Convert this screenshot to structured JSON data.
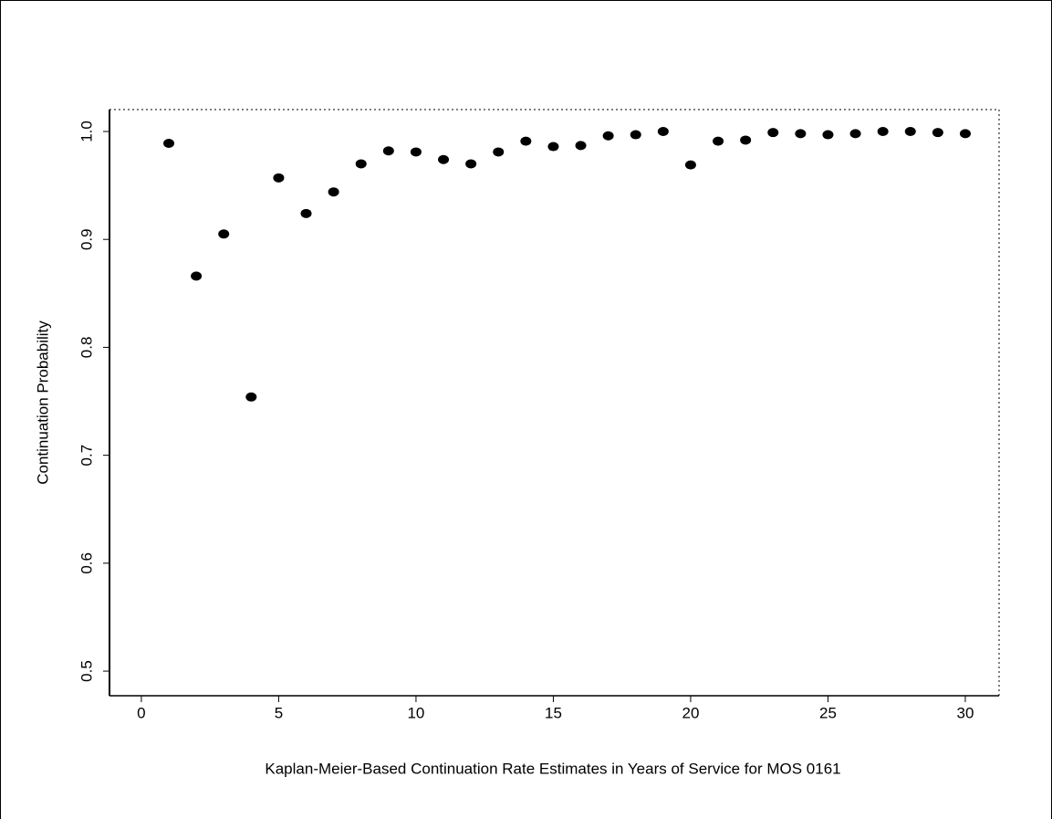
{
  "chart_data": {
    "type": "scatter",
    "x_label": "Kaplan-Meier-Based Continuation Rate Estimates in Years of Service for MOS  0161",
    "y_label": "Continuation Probability",
    "x": [
      1,
      2,
      3,
      4,
      5,
      6,
      7,
      8,
      9,
      10,
      11,
      12,
      13,
      14,
      15,
      16,
      17,
      18,
      19,
      20,
      21,
      22,
      23,
      24,
      25,
      26,
      27,
      28,
      29,
      30
    ],
    "values": [
      0.989,
      0.866,
      0.905,
      0.754,
      0.957,
      0.924,
      0.944,
      0.97,
      0.982,
      0.981,
      0.974,
      0.97,
      0.981,
      0.991,
      0.986,
      0.987,
      0.996,
      0.997,
      1.0,
      0.969,
      0.991,
      0.992,
      0.999,
      0.998,
      0.997,
      0.998,
      1.0,
      1.0,
      0.999,
      0.998
    ],
    "color": "#000000",
    "xlim": [
      -1.16,
      31.23
    ],
    "ylim": [
      0.4772,
      1.0203
    ],
    "xticks": [
      0,
      5,
      10,
      15,
      20,
      25,
      30
    ],
    "yticks": [
      0.5,
      0.6,
      0.7,
      0.8,
      0.9,
      {
        "value": 1.0,
        "label": "1.0"
      }
    ]
  }
}
